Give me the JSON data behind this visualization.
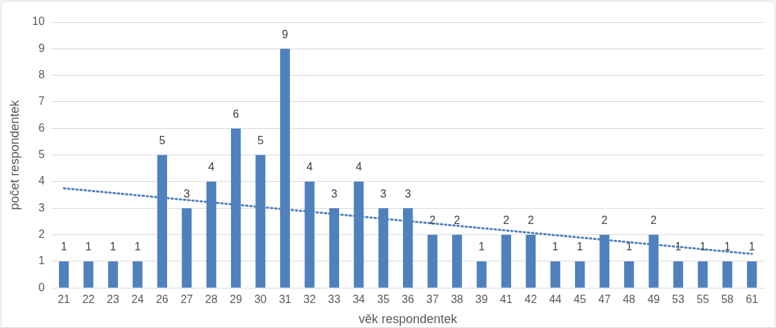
{
  "chart_data": {
    "type": "bar",
    "xlabel": "věk respondentek",
    "ylabel": "počet respondentek",
    "categories": [
      "21",
      "22",
      "23",
      "24",
      "26",
      "27",
      "28",
      "29",
      "30",
      "31",
      "32",
      "33",
      "34",
      "35",
      "36",
      "37",
      "38",
      "39",
      "41",
      "42",
      "44",
      "45",
      "47",
      "48",
      "49",
      "53",
      "55",
      "58",
      "61"
    ],
    "series": [
      {
        "color": "#4f81bd",
        "values": [
          1,
          1,
          1,
          1,
          5,
          3,
          4,
          6,
          5,
          9,
          4,
          3,
          4,
          3,
          3,
          2,
          2,
          1,
          2,
          2,
          1,
          1,
          2,
          1,
          2,
          1,
          1,
          1,
          1
        ],
        "value_labels": [
          "1",
          "1",
          "1",
          "1",
          "5",
          "3",
          "4",
          "6",
          "5",
          "9",
          "4",
          "3",
          "4",
          "3",
          "3",
          "2",
          "2",
          "1",
          "2",
          "2",
          "1",
          "1",
          "2",
          "1",
          "2",
          "1",
          "1",
          "1",
          "1"
        ]
      },
      {
        "type": "line",
        "color": "#4f81bd",
        "x": [
          "21",
          "61"
        ],
        "values": [
          3.75,
          1.28
        ],
        "line_style": "dotted",
        "marker": "none"
      }
    ],
    "ylim": [
      0,
      10
    ],
    "yticks": [
      0,
      1,
      2,
      3,
      4,
      5,
      6,
      7,
      8,
      9,
      10
    ],
    "grid": "y",
    "legend": false
  }
}
